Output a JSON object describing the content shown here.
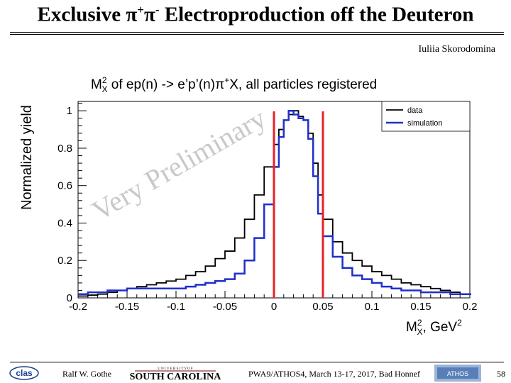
{
  "header": {
    "title_prefix": "Exclusive π",
    "title_sup1": "+",
    "title_mid": "π",
    "title_sup2": "-",
    "title_suffix": " Electroproduction off the Deuteron",
    "author": "Iuliia Skorodomina"
  },
  "footer": {
    "presenter": "Ralf  W. Gothe",
    "university": "SOUTH CAROLINA",
    "university_top": "U N I V E R S I T Y  O F",
    "conference": "PWA9/ATHOS4, March 13-17, 2017, Bad Honnef",
    "page": "58",
    "clas_logo": "clas",
    "athos_logo": "ATHOS"
  },
  "chart_data": {
    "type": "histogram",
    "title": "M_X^2 of ep(n) -> e'p'(n)π+X, all particles registered",
    "xlabel": "M_X^2, GeV^2",
    "ylabel": "Normalized yield",
    "xlim": [
      -0.2,
      0.2
    ],
    "ylim": [
      0,
      1.05
    ],
    "xticks": [
      "-0.2",
      "-0.15",
      "-0.1",
      "-0.05",
      "0",
      "0.05",
      "0.1",
      "0.15",
      "0.2"
    ],
    "yticks": [
      "0",
      "0.2",
      "0.4",
      "0.6",
      "0.8",
      "1"
    ],
    "watermark": "Very Preliminary",
    "legend_position": "top-right",
    "cut_lines": [
      0,
      0.05
    ],
    "cut_color": "#e8202a",
    "series": [
      {
        "name": "data",
        "color": "#000000",
        "x": [
          -0.2,
          -0.19,
          -0.18,
          -0.17,
          -0.16,
          -0.15,
          -0.14,
          -0.13,
          -0.12,
          -0.11,
          -0.1,
          -0.09,
          -0.08,
          -0.07,
          -0.06,
          -0.05,
          -0.04,
          -0.03,
          -0.02,
          -0.01,
          0,
          0.005,
          0.01,
          0.015,
          0.02,
          0.025,
          0.03,
          0.035,
          0.04,
          0.045,
          0.05,
          0.06,
          0.07,
          0.08,
          0.09,
          0.1,
          0.11,
          0.12,
          0.13,
          0.14,
          0.15,
          0.16,
          0.17,
          0.18,
          0.19,
          0.2
        ],
        "y": [
          0.01,
          0.015,
          0.02,
          0.03,
          0.04,
          0.05,
          0.06,
          0.07,
          0.08,
          0.09,
          0.1,
          0.12,
          0.14,
          0.17,
          0.21,
          0.25,
          0.32,
          0.42,
          0.55,
          0.7,
          0.82,
          0.9,
          0.95,
          0.98,
          1.0,
          0.97,
          0.95,
          0.88,
          0.72,
          0.55,
          0.42,
          0.3,
          0.24,
          0.2,
          0.17,
          0.14,
          0.12,
          0.1,
          0.08,
          0.07,
          0.06,
          0.05,
          0.04,
          0.03,
          0.02,
          0.02
        ]
      },
      {
        "name": "simulation",
        "color": "#1f2fcc",
        "x": [
          -0.2,
          -0.19,
          -0.18,
          -0.17,
          -0.16,
          -0.15,
          -0.14,
          -0.13,
          -0.12,
          -0.11,
          -0.1,
          -0.09,
          -0.08,
          -0.07,
          -0.06,
          -0.05,
          -0.04,
          -0.03,
          -0.02,
          -0.01,
          0,
          0.005,
          0.01,
          0.015,
          0.02,
          0.025,
          0.03,
          0.035,
          0.04,
          0.045,
          0.05,
          0.06,
          0.07,
          0.08,
          0.09,
          0.1,
          0.11,
          0.12,
          0.13,
          0.14,
          0.15,
          0.16,
          0.17,
          0.18,
          0.19,
          0.2
        ],
        "y": [
          0.02,
          0.03,
          0.03,
          0.04,
          0.04,
          0.05,
          0.05,
          0.05,
          0.05,
          0.05,
          0.05,
          0.06,
          0.07,
          0.08,
          0.09,
          0.1,
          0.13,
          0.2,
          0.32,
          0.5,
          0.7,
          0.86,
          0.95,
          1.0,
          0.98,
          0.96,
          0.95,
          0.85,
          0.65,
          0.45,
          0.33,
          0.22,
          0.16,
          0.12,
          0.1,
          0.08,
          0.06,
          0.05,
          0.04,
          0.04,
          0.03,
          0.03,
          0.03,
          0.02,
          0.02,
          0.02
        ]
      }
    ]
  }
}
